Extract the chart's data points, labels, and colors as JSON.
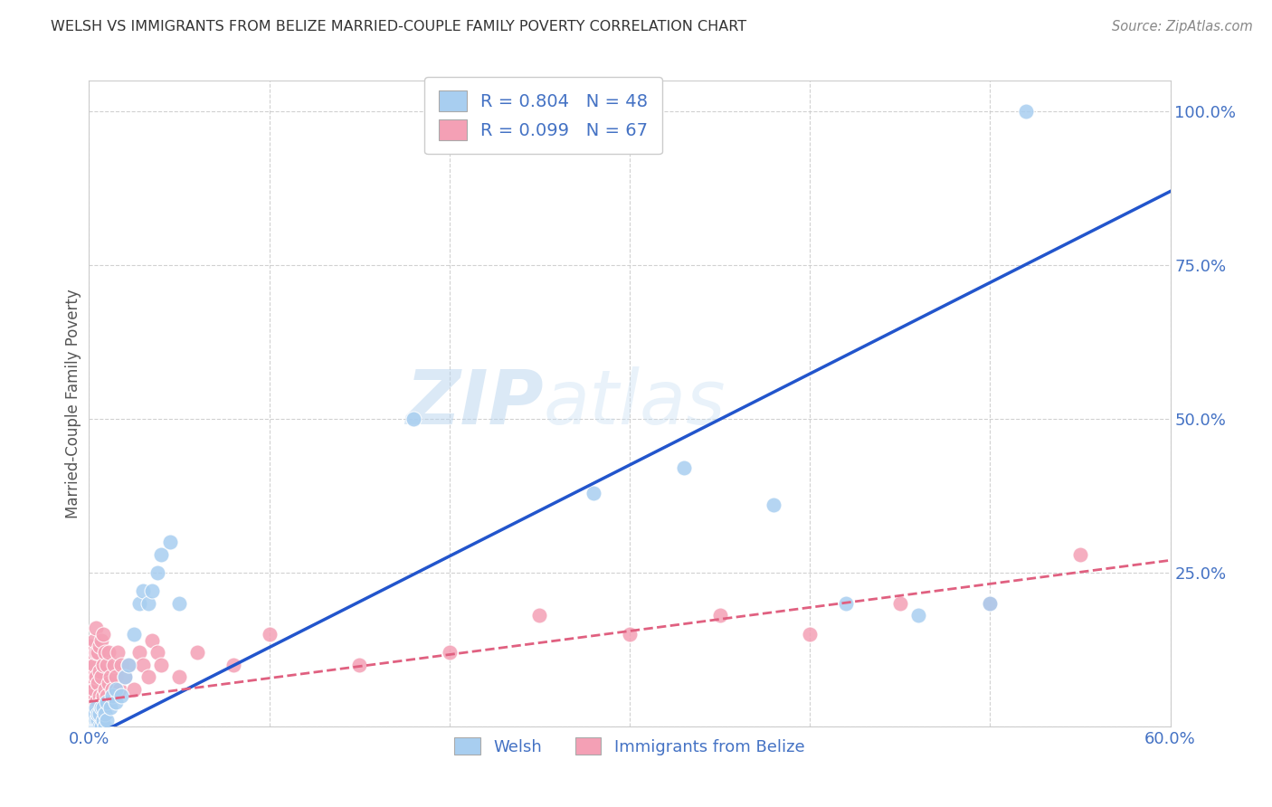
{
  "title": "WELSH VS IMMIGRANTS FROM BELIZE MARRIED-COUPLE FAMILY POVERTY CORRELATION CHART",
  "source": "Source: ZipAtlas.com",
  "ylabel": "Married-Couple Family Poverty",
  "xlim": [
    0,
    0.6
  ],
  "ylim": [
    0,
    1.05
  ],
  "xticks": [
    0.0,
    0.1,
    0.2,
    0.3,
    0.4,
    0.5,
    0.6
  ],
  "xticklabels": [
    "0.0%",
    "",
    "",
    "",
    "",
    "",
    "60.0%"
  ],
  "yticks": [
    0.0,
    0.25,
    0.5,
    0.75,
    1.0
  ],
  "yticklabels": [
    "",
    "25.0%",
    "50.0%",
    "75.0%",
    "100.0%"
  ],
  "welsh_R": 0.804,
  "welsh_N": 48,
  "belize_R": 0.099,
  "belize_N": 67,
  "welsh_color": "#A8CEF0",
  "belize_color": "#F4A0B5",
  "welsh_line_color": "#2255CC",
  "belize_line_color": "#E06080",
  "legend_label_welsh": "Welsh",
  "legend_label_belize": "Immigrants from Belize",
  "watermark_zip": "ZIP",
  "watermark_atlas": "atlas",
  "welsh_x": [
    0.001,
    0.001,
    0.002,
    0.002,
    0.002,
    0.003,
    0.003,
    0.003,
    0.004,
    0.004,
    0.004,
    0.005,
    0.005,
    0.005,
    0.006,
    0.006,
    0.007,
    0.007,
    0.008,
    0.008,
    0.009,
    0.009,
    0.01,
    0.01,
    0.012,
    0.013,
    0.015,
    0.015,
    0.018,
    0.02,
    0.022,
    0.025,
    0.028,
    0.03,
    0.033,
    0.035,
    0.038,
    0.04,
    0.045,
    0.05,
    0.18,
    0.28,
    0.33,
    0.38,
    0.42,
    0.46,
    0.5,
    0.52
  ],
  "welsh_y": [
    0.0,
    0.01,
    0.0,
    0.0,
    0.02,
    0.0,
    0.01,
    0.02,
    0.0,
    0.01,
    0.03,
    0.0,
    0.01,
    0.02,
    0.0,
    0.02,
    0.0,
    0.03,
    0.01,
    0.03,
    0.0,
    0.02,
    0.01,
    0.04,
    0.03,
    0.05,
    0.04,
    0.06,
    0.05,
    0.08,
    0.1,
    0.15,
    0.2,
    0.22,
    0.2,
    0.22,
    0.25,
    0.28,
    0.3,
    0.2,
    0.5,
    0.38,
    0.42,
    0.36,
    0.2,
    0.18,
    0.2,
    1.0
  ],
  "belize_x": [
    0.0,
    0.0,
    0.0,
    0.001,
    0.001,
    0.001,
    0.001,
    0.001,
    0.002,
    0.002,
    0.002,
    0.002,
    0.003,
    0.003,
    0.003,
    0.003,
    0.004,
    0.004,
    0.004,
    0.004,
    0.005,
    0.005,
    0.005,
    0.006,
    0.006,
    0.006,
    0.007,
    0.007,
    0.007,
    0.008,
    0.008,
    0.008,
    0.009,
    0.009,
    0.01,
    0.01,
    0.011,
    0.011,
    0.012,
    0.013,
    0.014,
    0.015,
    0.016,
    0.017,
    0.018,
    0.02,
    0.022,
    0.025,
    0.028,
    0.03,
    0.033,
    0.035,
    0.038,
    0.04,
    0.05,
    0.06,
    0.08,
    0.1,
    0.15,
    0.2,
    0.25,
    0.3,
    0.35,
    0.4,
    0.45,
    0.5,
    0.55
  ],
  "belize_y": [
    0.0,
    0.03,
    0.06,
    0.0,
    0.04,
    0.08,
    0.1,
    0.13,
    0.0,
    0.05,
    0.08,
    0.12,
    0.02,
    0.06,
    0.1,
    0.14,
    0.04,
    0.08,
    0.12,
    0.16,
    0.03,
    0.07,
    0.12,
    0.05,
    0.09,
    0.13,
    0.04,
    0.08,
    0.14,
    0.05,
    0.1,
    0.15,
    0.06,
    0.12,
    0.05,
    0.1,
    0.07,
    0.12,
    0.08,
    0.06,
    0.1,
    0.08,
    0.12,
    0.06,
    0.1,
    0.08,
    0.1,
    0.06,
    0.12,
    0.1,
    0.08,
    0.14,
    0.12,
    0.1,
    0.08,
    0.12,
    0.1,
    0.15,
    0.1,
    0.12,
    0.18,
    0.15,
    0.18,
    0.15,
    0.2,
    0.2,
    0.28
  ],
  "welsh_line_x0": 0.0,
  "welsh_line_y0": -0.02,
  "welsh_line_x1": 0.6,
  "welsh_line_y1": 0.87,
  "belize_line_x0": 0.0,
  "belize_line_y0": 0.04,
  "belize_line_x1": 0.6,
  "belize_line_y1": 0.27
}
